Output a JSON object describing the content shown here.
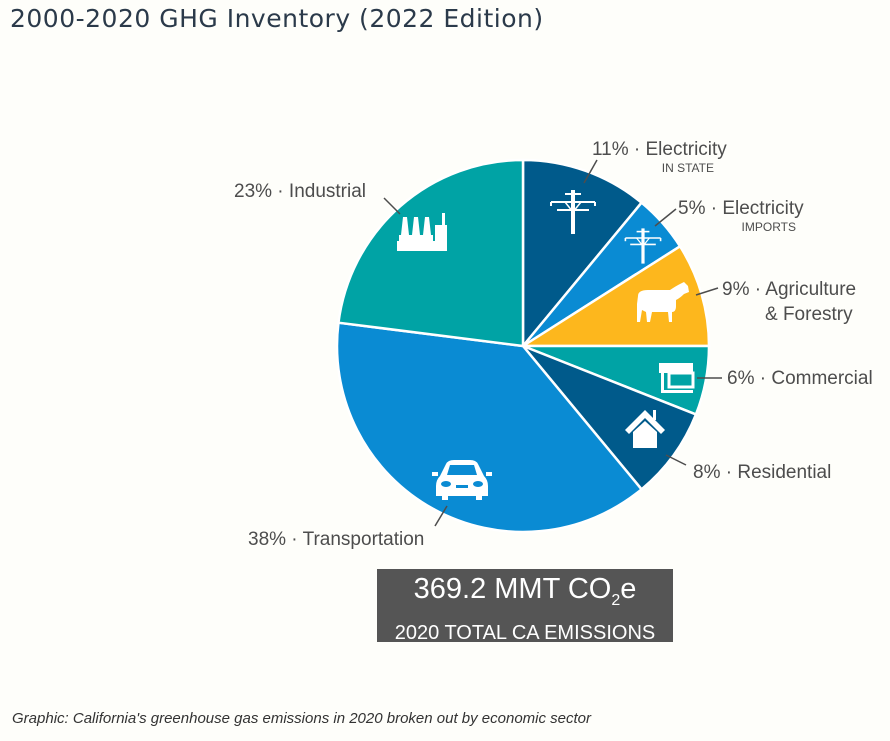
{
  "page": {
    "title": "2000-2020 GHG Inventory (2022 Edition)",
    "caption": "Graphic: California's greenhouse gas emissions in 2020 broken out by economic sector"
  },
  "total": {
    "value_prefix": "369.2 MMT CO",
    "value_sub": "2",
    "value_suffix": "e",
    "label": "2020 TOTAL CA EMISSIONS"
  },
  "chart_data": {
    "type": "pie",
    "title": "2000-2020 GHG Inventory (2022 Edition)",
    "start": "12 o'clock, clockwise",
    "slices": [
      {
        "name": "Electricity",
        "sublabel": "IN STATE",
        "value": 11,
        "label": "11% · Electricity",
        "color": "#005a8b",
        "icon": "power-tower-icon"
      },
      {
        "name": "Electricity",
        "sublabel": "IMPORTS",
        "value": 5,
        "label": "5% · Electricity",
        "color": "#0a8bd3",
        "icon": "power-tower-icon"
      },
      {
        "name": "Agriculture & Forestry",
        "sublabel": "",
        "value": 9,
        "label": "9% · Agriculture",
        "label2": "& Forestry",
        "color": "#fdb71d",
        "icon": "cow-icon"
      },
      {
        "name": "Commercial",
        "sublabel": "",
        "value": 6,
        "label": "6% · Commercial",
        "color": "#00a3a5",
        "icon": "storefront-icon"
      },
      {
        "name": "Residential",
        "sublabel": "",
        "value": 8,
        "label": "8% · Residential",
        "color": "#005a8b",
        "icon": "house-icon"
      },
      {
        "name": "Transportation",
        "sublabel": "",
        "value": 38,
        "label": "38% · Transportation",
        "color": "#0a8bd3",
        "icon": "car-icon"
      },
      {
        "name": "Industrial",
        "sublabel": "",
        "value": 23,
        "label": "23% · Industrial",
        "color": "#00a3a5",
        "icon": "factory-icon"
      }
    ],
    "units": "% of total emissions",
    "total": "369.2 MMT CO2e"
  }
}
